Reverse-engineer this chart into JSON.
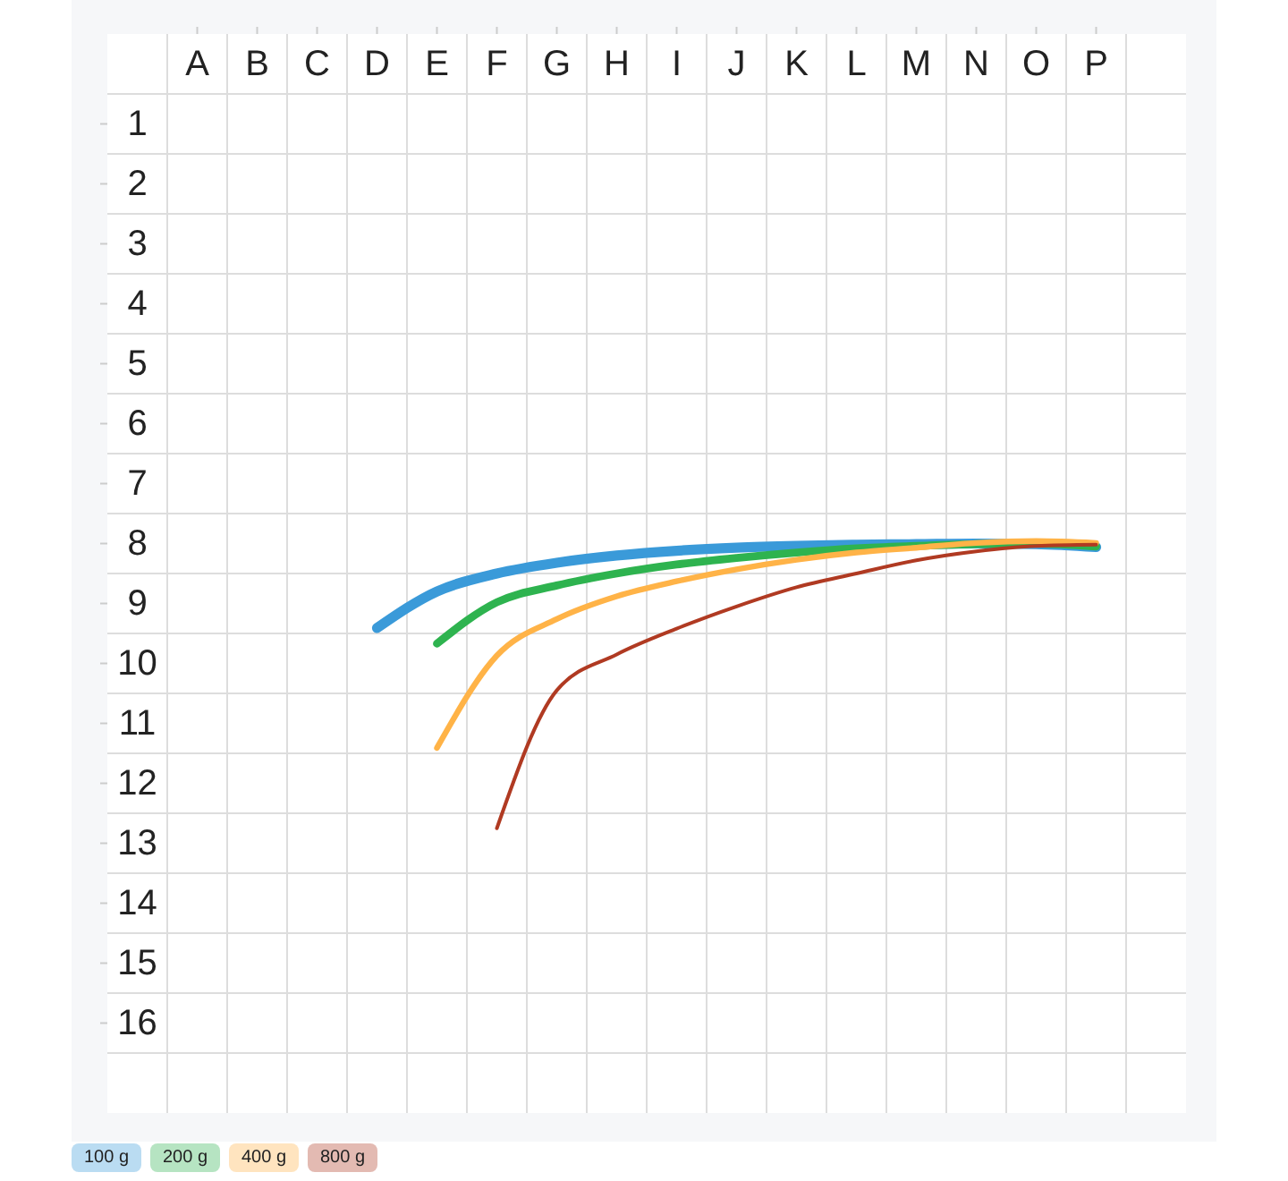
{
  "chart_data": {
    "type": "line",
    "ylim": [
      17.5,
      -0.5
    ],
    "categories": [
      "A",
      "B",
      "C",
      "D",
      "E",
      "F",
      "G",
      "H",
      "I",
      "J",
      "K",
      "L",
      "M",
      "N",
      "O",
      "P"
    ],
    "yticks": [
      1,
      2,
      3,
      4,
      5,
      6,
      7,
      8,
      9,
      10,
      11,
      12,
      13,
      14,
      15,
      16
    ],
    "grid": true,
    "legend": "bottom left",
    "marker": "none",
    "line_style": "solid",
    "series": [
      {
        "name": "100 g",
        "color": "#3a9ad9",
        "values": [
          null,
          null,
          null,
          9.41,
          8.8,
          8.5,
          8.32,
          8.2,
          8.12,
          8.07,
          8.04,
          8.02,
          8.01,
          8.0,
          8.01,
          8.06
        ]
      },
      {
        "name": "200 g",
        "color": "#2eb34f",
        "values": [
          null,
          null,
          null,
          null,
          9.67,
          8.98,
          8.7,
          8.5,
          8.35,
          8.24,
          8.15,
          8.08,
          8.04,
          8.01,
          8.0,
          8.05
        ]
      },
      {
        "name": "400 g",
        "color": "#ffb347",
        "values": [
          null,
          null,
          null,
          null,
          11.41,
          9.87,
          9.26,
          8.88,
          8.63,
          8.43,
          8.27,
          8.15,
          8.07,
          7.99,
          7.96,
          7.99
        ]
      },
      {
        "name": "800 g",
        "color": "#b03a22",
        "values": [
          null,
          null,
          null,
          null,
          null,
          12.75,
          10.45,
          9.85,
          9.42,
          9.05,
          8.73,
          8.5,
          8.28,
          8.13,
          8.04,
          8.02
        ]
      }
    ]
  }
}
